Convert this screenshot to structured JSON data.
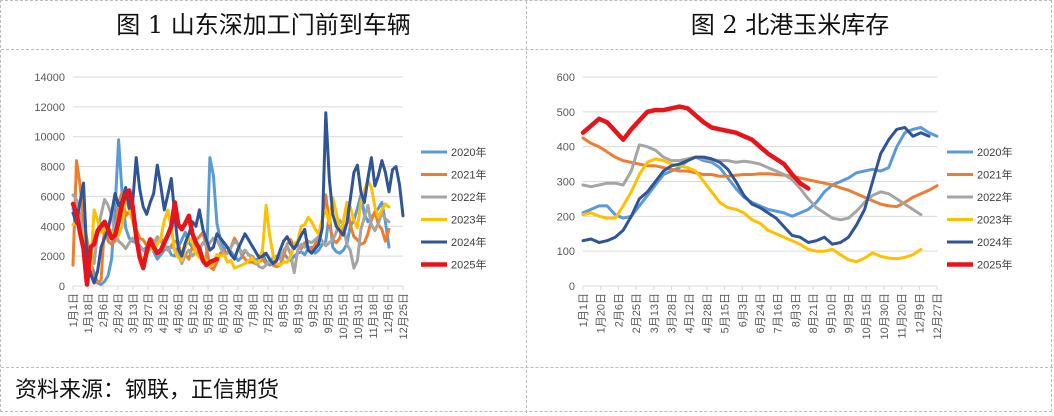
{
  "titles": {
    "left": "图 1  山东深加工门前到车辆",
    "right": "图 2  北港玉米库存"
  },
  "footer": {
    "source": "资料来源：钢联，正信期货"
  },
  "chart_data": [
    {
      "type": "line",
      "title": "",
      "ylim": [
        0,
        14000
      ],
      "yticks": [
        0,
        2000,
        4000,
        6000,
        8000,
        10000,
        12000,
        14000
      ],
      "xticks": [
        "1月1日",
        "1月18日",
        "2月6日",
        "2月24日",
        "3月13日",
        "3月27日",
        "4月12日",
        "4月26日",
        "5月12日",
        "5月26日",
        "6月10日",
        "6月24日",
        "7月8日",
        "7月22日",
        "8月5日",
        "8月19日",
        "9月2日",
        "9月25日",
        "10月15日",
        "10月31日",
        "11月18日",
        "12月6日",
        "12月25日"
      ],
      "legend": "right",
      "grid": true,
      "series": [
        {
          "name": "2020年",
          "color": "#5b9bd5",
          "width": 3,
          "values": [
            5200,
            4600,
            4100,
            3300,
            2900,
            1500,
            900,
            200,
            100,
            300,
            700,
            1800,
            5200,
            9800,
            6200,
            3900,
            3200,
            3000,
            2900,
            2700,
            2400,
            2600,
            2900,
            2300,
            1800,
            2100,
            2400,
            2600,
            2100,
            2000,
            2600,
            3100,
            3600,
            2900,
            2600,
            2300,
            2200,
            1800,
            1500,
            8600,
            7400,
            4200,
            3100,
            2500,
            2600,
            2300,
            2000,
            1700,
            1900,
            2400,
            2100,
            2000,
            1700,
            1900,
            2300,
            1600,
            1400,
            1500,
            2000,
            1800,
            2200,
            1900,
            1700,
            2000,
            2200,
            2300,
            2100,
            2500,
            2600,
            2200,
            2400,
            2800,
            3000,
            4800,
            2600,
            2300,
            2200,
            2400,
            2800,
            4000,
            4400,
            5200,
            6100,
            4800,
            4300,
            4600,
            4900,
            5200,
            5600,
            4300,
            2600
          ]
        },
        {
          "name": "2021年",
          "color": "#ed7d31",
          "width": 3,
          "values": [
            1400,
            8400,
            6800,
            4400,
            3100,
            1600,
            300,
            200,
            400,
            4200,
            3000,
            2800,
            3000,
            5500,
            6300,
            4700,
            5000,
            5600,
            3800,
            3200,
            3100,
            2700,
            3200,
            3000,
            2900,
            3200,
            2800,
            2400,
            2700,
            3000,
            2900,
            1900,
            2100,
            1800,
            2700,
            3100,
            3300,
            3600,
            2600,
            1300,
            1100,
            1600,
            2200,
            2400,
            2200,
            2600,
            3200,
            2800,
            2100,
            1800,
            1600,
            1600,
            1500,
            1600,
            1800,
            1500,
            1700,
            1400,
            1300,
            1400,
            2000,
            2800,
            3100,
            2600,
            2700,
            2500,
            2900,
            2600,
            2400,
            2800,
            3300,
            4400,
            6100,
            4200,
            3100,
            2900,
            3200,
            4300,
            5500,
            4100,
            3300,
            3100,
            2800,
            2900,
            3500,
            4400,
            5000,
            4100,
            3800,
            3000,
            3800
          ]
        },
        {
          "name": "2022年",
          "color": "#a5a5a5",
          "width": 3,
          "values": [
            6100,
            5800,
            4800,
            3000,
            2300,
            2600,
            1500,
            3600,
            4800,
            5800,
            5400,
            4700,
            3500,
            3000,
            2800,
            2500,
            2900,
            3200,
            3000,
            2600,
            2400,
            2300,
            2600,
            2800,
            3300,
            3000,
            2700,
            2400,
            2600,
            2500,
            2100,
            1500,
            2100,
            2400,
            2000,
            2300,
            2500,
            2900,
            2700,
            2900,
            3200,
            3100,
            2600,
            2100,
            2200,
            2600,
            3000,
            2800,
            2200,
            2400,
            2100,
            1900,
            1600,
            1300,
            1200,
            1400,
            1700,
            1900,
            2000,
            1800,
            2400,
            2700,
            2100,
            900,
            2400,
            2800,
            2600,
            3000,
            2900,
            3100,
            3300,
            3000,
            2700,
            2900,
            3100,
            3600,
            4400,
            4100,
            2800,
            2400,
            1200,
            1700,
            3800,
            4600,
            5400,
            4100,
            3700,
            4200,
            4900,
            4500,
            4300
          ]
        },
        {
          "name": "2023年",
          "color": "#ffc000",
          "width": 3,
          "values": [
            4100,
            4300,
            3900,
            3300,
            2500,
            1100,
            5100,
            4400,
            3600,
            3800,
            4000,
            3600,
            3500,
            3400,
            4000,
            6100,
            5100,
            4300,
            3500,
            2100,
            1800,
            2100,
            2600,
            2400,
            2800,
            3200,
            4400,
            5100,
            3900,
            2300,
            1900,
            1700,
            2600,
            3200,
            3000,
            2200,
            1900,
            2000,
            1700,
            1300,
            1500,
            2100,
            2000,
            2100,
            1600,
            1700,
            1200,
            1300,
            1400,
            1500,
            1700,
            1900,
            1600,
            1600,
            2500,
            5400,
            3400,
            2100,
            1500,
            1400,
            1600,
            1600,
            2000,
            2800,
            3000,
            4000,
            4100,
            4600,
            4300,
            3800,
            3500,
            4500,
            5100,
            4200,
            5900,
            4900,
            3700,
            4300,
            5600,
            5300,
            4400,
            3900,
            5600,
            6400,
            7100,
            6600,
            5300,
            4600,
            5100,
            5500,
            5300
          ]
        },
        {
          "name": "2024年",
          "color": "#2f5597",
          "width": 3,
          "values": [
            4900,
            4200,
            5600,
            6900,
            1800,
            800,
            200,
            1000,
            2600,
            3200,
            3800,
            4900,
            6200,
            5400,
            5700,
            6600,
            5200,
            5600,
            8600,
            6500,
            5300,
            4800,
            5600,
            6200,
            8100,
            6700,
            5100,
            6100,
            7200,
            4700,
            2500,
            2000,
            2900,
            3500,
            4300,
            4000,
            5100,
            3800,
            3100,
            2400,
            2600,
            3500,
            3200,
            2900,
            2600,
            2100,
            1800,
            2500,
            3000,
            3500,
            3100,
            2700,
            2300,
            1900,
            2000,
            2200,
            1800,
            1500,
            1700,
            2400,
            3000,
            3300,
            2800,
            2500,
            2900,
            3400,
            3800,
            2400,
            2200,
            2500,
            2800,
            3900,
            11600,
            7200,
            4800,
            4000,
            3700,
            3400,
            4200,
            5800,
            7600,
            8100,
            6300,
            5600,
            7200,
            8600,
            6700,
            7400,
            8400,
            7600,
            6300,
            7800,
            8000,
            6800,
            4700
          ]
        },
        {
          "name": "2025年",
          "color": "#e8141b",
          "width": 4.5,
          "values": [
            5500,
            4900,
            3600,
            2500,
            100,
            2600,
            2800,
            3700,
            4000,
            4300,
            3800,
            3200,
            3400,
            4300,
            5500,
            6100,
            6400,
            5300,
            3300,
            1900,
            1200,
            2300,
            3100,
            2600,
            2200,
            2400,
            2900,
            3400,
            4000,
            5600,
            4100,
            3800,
            4200,
            4700,
            3500,
            2900,
            2500,
            1700,
            1400,
            1600,
            1700,
            1800
          ]
        }
      ]
    },
    {
      "type": "line",
      "title": "",
      "ylim": [
        0,
        600
      ],
      "yticks": [
        0,
        100,
        200,
        300,
        400,
        500,
        600
      ],
      "xticks": [
        "1月1日",
        "1月20日",
        "2月6日",
        "2月25日",
        "3月13日",
        "3月28日",
        "4月12日",
        "4月28日",
        "5月15日",
        "6月3日",
        "6月24日",
        "7月16日",
        "8月3日",
        "8月21日",
        "9月10日",
        "9月29日",
        "10月15日",
        "10月30日",
        "11月20日",
        "12月9日",
        "12月27日"
      ],
      "legend": "right",
      "grid": true,
      "series": [
        {
          "name": "2020年",
          "color": "#5b9bd5",
          "width": 3,
          "values": [
            210,
            220,
            230,
            230,
            205,
            195,
            200,
            230,
            260,
            290,
            320,
            330,
            340,
            360,
            370,
            360,
            355,
            340,
            310,
            280,
            255,
            240,
            230,
            220,
            215,
            210,
            200,
            210,
            220,
            240,
            270,
            290,
            300,
            310,
            325,
            330,
            335,
            330,
            340,
            400,
            440,
            450,
            455,
            440,
            430
          ]
        },
        {
          "name": "2021年",
          "color": "#ed7d31",
          "width": 3,
          "values": [
            425,
            410,
            400,
            385,
            370,
            360,
            355,
            350,
            345,
            345,
            340,
            335,
            330,
            330,
            325,
            320,
            320,
            315,
            315,
            318,
            320,
            320,
            322,
            322,
            320,
            318,
            315,
            310,
            305,
            300,
            295,
            290,
            282,
            275,
            265,
            255,
            245,
            235,
            230,
            228,
            240,
            255,
            265,
            275,
            288
          ]
        },
        {
          "name": "2022年",
          "color": "#a5a5a5",
          "width": 3,
          "values": [
            290,
            285,
            290,
            295,
            295,
            290,
            330,
            405,
            400,
            390,
            370,
            360,
            360,
            365,
            370,
            365,
            362,
            360,
            360,
            355,
            358,
            355,
            350,
            340,
            330,
            320,
            305,
            280,
            250,
            225,
            210,
            195,
            190,
            195,
            215,
            240,
            260,
            270,
            265,
            250,
            235,
            220,
            205
          ]
        },
        {
          "name": "2023年",
          "color": "#ffc000",
          "width": 3,
          "values": [
            205,
            210,
            200,
            195,
            195,
            230,
            270,
            320,
            355,
            365,
            360,
            350,
            345,
            340,
            330,
            300,
            270,
            240,
            225,
            220,
            210,
            190,
            180,
            160,
            150,
            140,
            130,
            120,
            105,
            100,
            100,
            105,
            90,
            75,
            70,
            80,
            95,
            85,
            80,
            78,
            82,
            90,
            105
          ]
        },
        {
          "name": "2024年",
          "color": "#2f5597",
          "width": 3,
          "values": [
            130,
            135,
            125,
            130,
            140,
            160,
            200,
            250,
            270,
            300,
            330,
            345,
            350,
            360,
            370,
            370,
            365,
            355,
            335,
            300,
            260,
            235,
            225,
            210,
            195,
            170,
            145,
            140,
            125,
            130,
            140,
            120,
            125,
            140,
            175,
            220,
            300,
            380,
            420,
            450,
            455,
            430,
            440,
            430
          ]
        },
        {
          "name": "2025年",
          "color": "#e8141b",
          "width": 4.5,
          "values": [
            440,
            460,
            480,
            470,
            445,
            420,
            450,
            475,
            500,
            505,
            505,
            510,
            515,
            510,
            490,
            470,
            455,
            450,
            445,
            440,
            430,
            420,
            400,
            380,
            365,
            350,
            320,
            295,
            280
          ]
        }
      ]
    }
  ]
}
